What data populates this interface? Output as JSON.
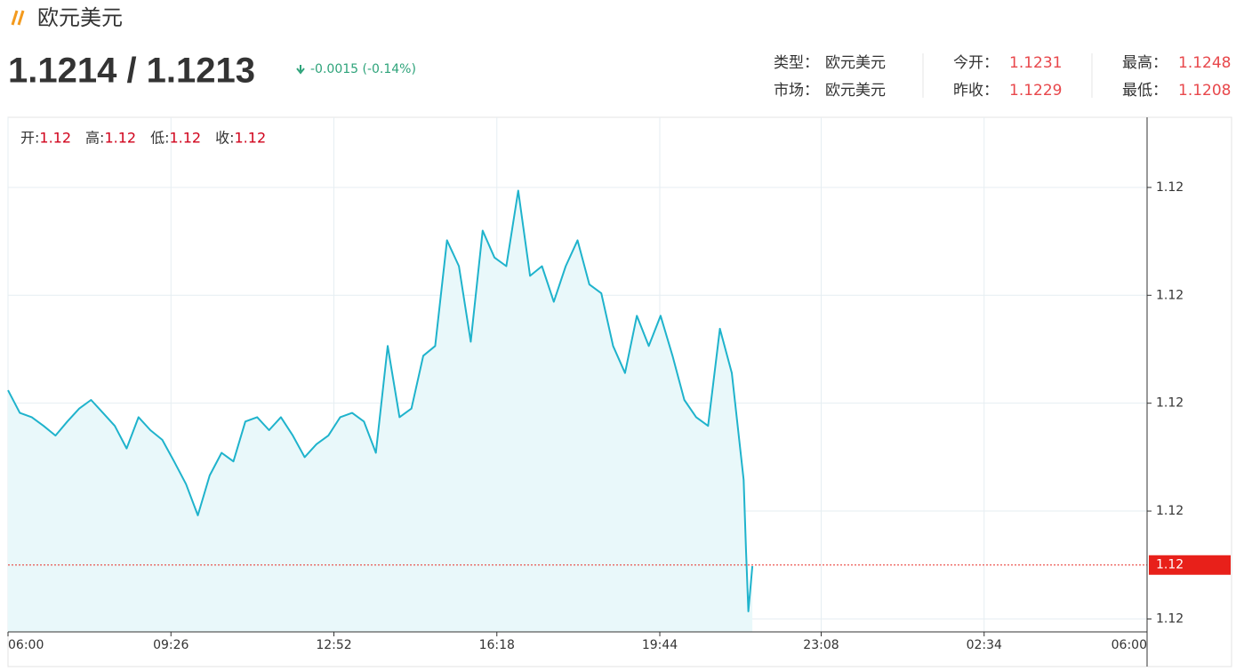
{
  "header": {
    "title": "欧元美元",
    "price": "1.1214 / 1.1213",
    "change": "-0.0015 (-0.14%)",
    "info": [
      [
        {
          "label": "类型：",
          "value": "欧元美元"
        },
        {
          "label": "今开：",
          "value": "1.1231"
        },
        {
          "label": "最高：",
          "value": "1.1248"
        }
      ],
      [
        {
          "label": "市场：",
          "value": "欧元美元"
        },
        {
          "label": "昨收：",
          "value": "1.1229"
        },
        {
          "label": "最低：",
          "value": "1.1208"
        }
      ]
    ]
  },
  "chart_data": {
    "type": "area",
    "ohlc": [
      {
        "label": "开:",
        "value": "1.12"
      },
      {
        "label": "高:",
        "value": "1.12"
      },
      {
        "label": "低:",
        "value": "1.12"
      },
      {
        "label": "收:",
        "value": "1.12"
      }
    ],
    "x": [
      0,
      15,
      30,
      45,
      60,
      75,
      90,
      105,
      120,
      135,
      150,
      165,
      180,
      195,
      210,
      225,
      240,
      255,
      270,
      285,
      300,
      315,
      330,
      345,
      360,
      375,
      390,
      405,
      420,
      435,
      450,
      465,
      480,
      495,
      510,
      525,
      540,
      555,
      570,
      585,
      600,
      615,
      630,
      645,
      660,
      675,
      690,
      705,
      720,
      735,
      750,
      765,
      780,
      795,
      810,
      825,
      840,
      855,
      870,
      885,
      900,
      915,
      930,
      933,
      936,
      941
    ],
    "values": [
      1.12292,
      1.12271,
      1.12267,
      1.12259,
      1.1225,
      1.12263,
      1.12275,
      1.12283,
      1.12271,
      1.12259,
      1.12238,
      1.12267,
      1.12255,
      1.12246,
      1.12226,
      1.12205,
      1.12176,
      1.12213,
      1.12234,
      1.12226,
      1.12263,
      1.12267,
      1.12255,
      1.12267,
      1.1225,
      1.1223,
      1.12242,
      1.1225,
      1.12267,
      1.12271,
      1.12263,
      1.12234,
      1.12333,
      1.12267,
      1.12275,
      1.12324,
      1.12333,
      1.12431,
      1.12407,
      1.12337,
      1.1244,
      1.12415,
      1.12407,
      1.12477,
      1.12398,
      1.12407,
      1.12374,
      1.12407,
      1.12431,
      1.1239,
      1.12382,
      1.12333,
      1.12308,
      1.12361,
      1.12333,
      1.12361,
      1.12324,
      1.12283,
      1.12267,
      1.12259,
      1.12349,
      1.12308,
      1.12209,
      1.12143,
      1.12087,
      1.12129
    ],
    "color": "#1fb3cc",
    "fill": "#e9f8fa",
    "xlim": [
      0,
      1440
    ],
    "xticks": [
      {
        "value": 0,
        "label": "06:00"
      },
      {
        "value": 206,
        "label": "09:26"
      },
      {
        "value": 412,
        "label": "12:52"
      },
      {
        "value": 618,
        "label": "16:18"
      },
      {
        "value": 824,
        "label": "19:44"
      },
      {
        "value": 1028,
        "label": "23:08"
      },
      {
        "value": 1234,
        "label": "02:34"
      },
      {
        "value": 1440,
        "label": "06:00"
      }
    ],
    "ylim": [
      1.12068,
      1.12545
    ],
    "yticks": [
      {
        "value": 1.1248,
        "label": "1.12"
      },
      {
        "value": 1.1238,
        "label": "1.12"
      },
      {
        "value": 1.1228,
        "label": "1.12"
      },
      {
        "value": 1.1218,
        "label": "1.12"
      },
      {
        "value": 1.1208,
        "label": "1.12"
      }
    ],
    "last_price": {
      "value": 1.1213,
      "label": "1.12"
    },
    "grid": true
  }
}
